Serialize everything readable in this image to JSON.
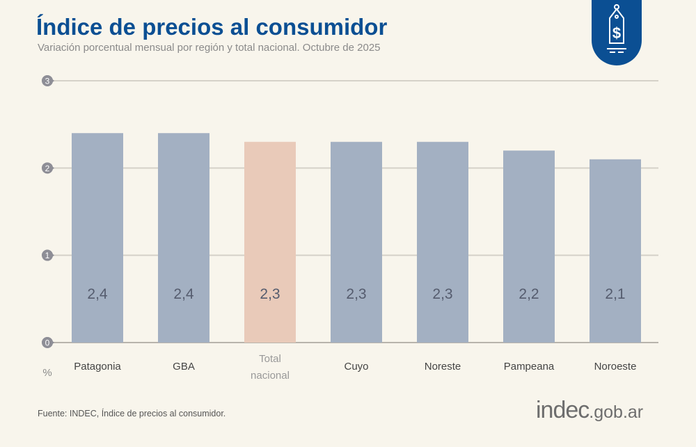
{
  "header": {
    "title": "Índice de precios al consumidor",
    "subtitle": "Variación porcentual mensual por región y total nacional. Octubre de 2025"
  },
  "badge": {
    "icon": "price-tag-dollar-icon",
    "color": "#0b4f93"
  },
  "footer": {
    "source": "Fuente: INDEC, Índice de precios al consumidor.",
    "logo_main": "indec",
    "logo_suffix": ".gob.ar"
  },
  "chart_data": {
    "type": "bar",
    "title": "Índice de precios al consumidor",
    "ylabel": "%",
    "ylim": [
      0,
      3
    ],
    "yticks": [
      0,
      1,
      2,
      3
    ],
    "grid": true,
    "categories": [
      "Patagonia",
      "GBA",
      "Total nacional",
      "Cuyo",
      "Noreste",
      "Pampeana",
      "Noroeste"
    ],
    "values": [
      2.4,
      2.4,
      2.3,
      2.3,
      2.3,
      2.2,
      2.1
    ],
    "data_labels": [
      "2,4",
      "2,4",
      "2,3",
      "2,3",
      "2,3",
      "2,2",
      "2,1"
    ],
    "highlight": "Total nacional",
    "colors": {
      "bar": "#a3b0c2",
      "highlight": "#e9cab9",
      "label": "#555c6e",
      "tick_bubble": "#8e8e96"
    }
  }
}
